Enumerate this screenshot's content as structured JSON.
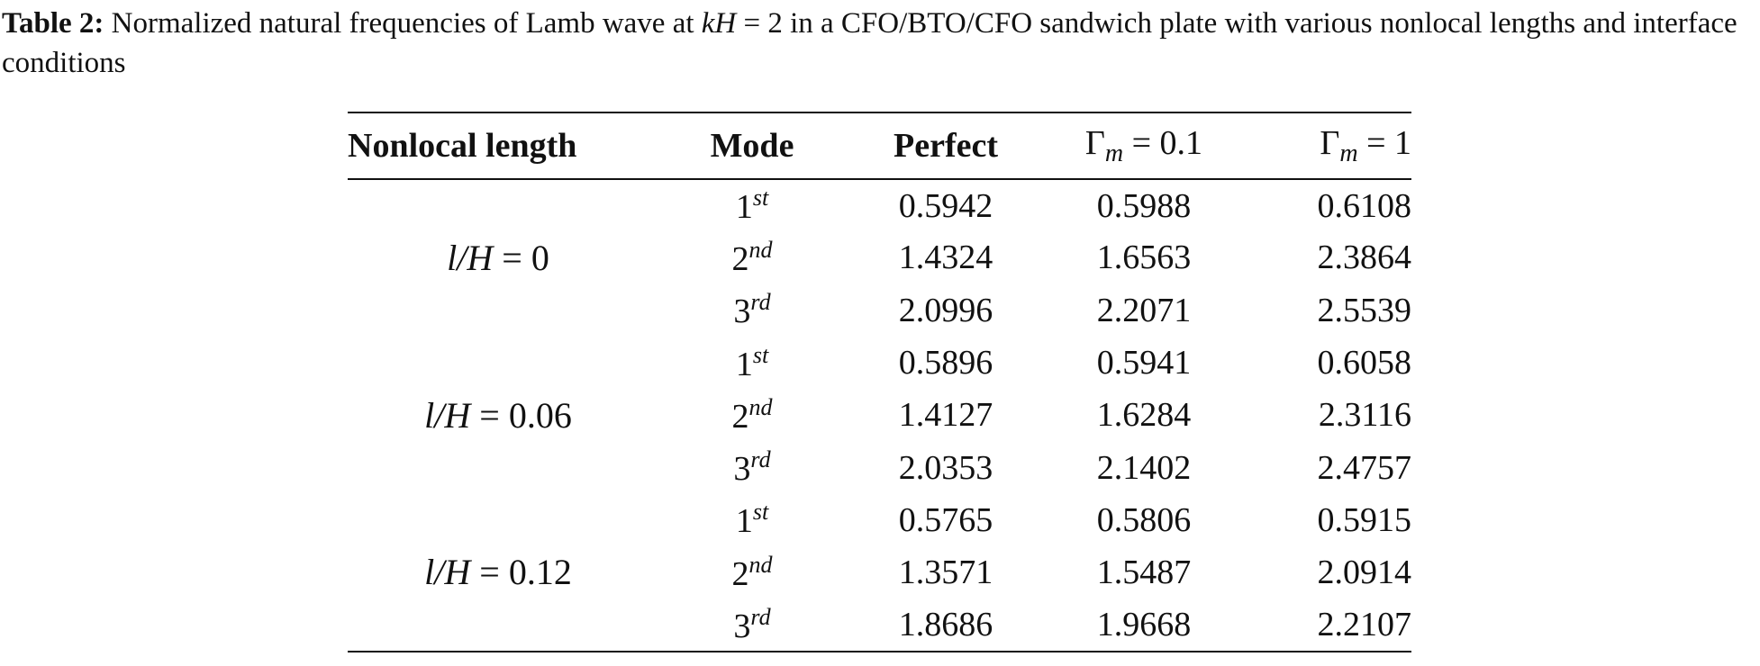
{
  "caption": {
    "label": "Table 2:",
    "text_before": " Normalized natural frequencies of Lamb wave at ",
    "italic": "kH",
    "text_after": " = 2 in a CFO/BTO/CFO sandwich plate with various nonlocal lengths and interface conditions"
  },
  "table": {
    "headers": [
      {
        "text": "Nonlocal length"
      },
      {
        "text": "Mode"
      },
      {
        "text": "Perfect"
      },
      {
        "symbol": "Γ",
        "sub": "m",
        "rest": " = 0.1"
      },
      {
        "symbol": "Γ",
        "sub": "m",
        "rest": " = 1"
      }
    ],
    "groups": [
      {
        "var": "l/H",
        "rest": " = 0",
        "rows": [
          {
            "mode": {
              "num": "1",
              "sup": "st"
            },
            "values": [
              0.5942,
              0.5988,
              0.6108
            ]
          },
          {
            "mode": {
              "num": "2",
              "sup": "nd"
            },
            "values": [
              1.4324,
              1.6563,
              2.3864
            ]
          },
          {
            "mode": {
              "num": "3",
              "sup": "rd"
            },
            "values": [
              2.0996,
              2.2071,
              2.5539
            ]
          }
        ]
      },
      {
        "var": "l/H",
        "rest": " = 0.06",
        "rows": [
          {
            "mode": {
              "num": "1",
              "sup": "st"
            },
            "values": [
              0.5896,
              0.5941,
              0.6058
            ]
          },
          {
            "mode": {
              "num": "2",
              "sup": "nd"
            },
            "values": [
              1.4127,
              1.6284,
              2.3116
            ]
          },
          {
            "mode": {
              "num": "3",
              "sup": "rd"
            },
            "values": [
              2.0353,
              2.1402,
              2.4757
            ]
          }
        ]
      },
      {
        "var": "l/H",
        "rest": " = 0.12",
        "rows": [
          {
            "mode": {
              "num": "1",
              "sup": "st"
            },
            "values": [
              0.5765,
              0.5806,
              0.5915
            ]
          },
          {
            "mode": {
              "num": "2",
              "sup": "nd"
            },
            "values": [
              1.3571,
              1.5487,
              2.0914
            ]
          },
          {
            "mode": {
              "num": "3",
              "sup": "rd"
            },
            "values": [
              1.8686,
              1.9668,
              2.2107
            ]
          }
        ]
      }
    ]
  }
}
